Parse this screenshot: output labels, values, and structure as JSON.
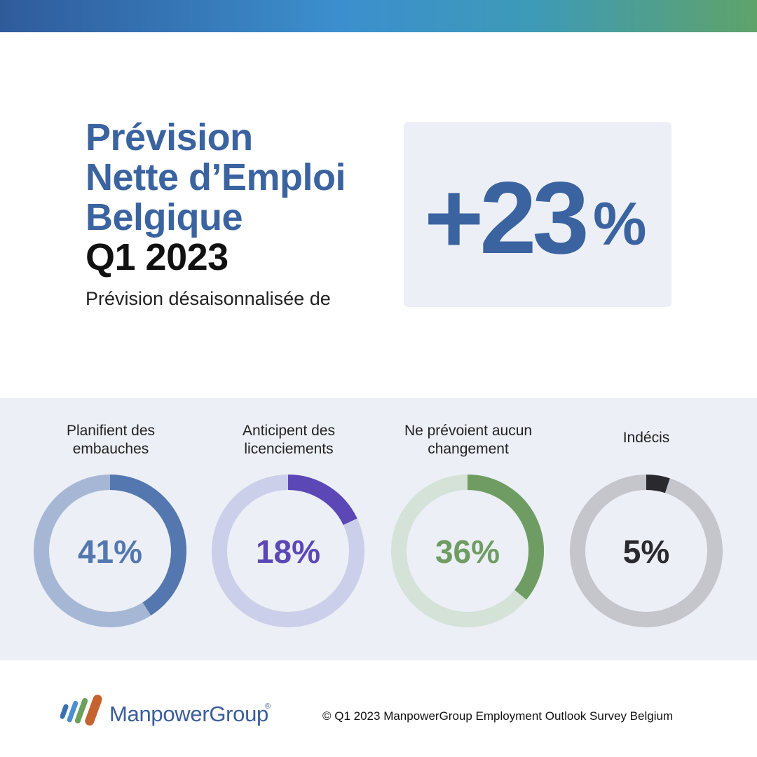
{
  "header": {
    "title_lines": [
      "Prévision",
      "Nette d’Emploi",
      "Belgique"
    ],
    "quarter": "Q1 2023",
    "subtitle": "Prévision désaisonnalisée de"
  },
  "outlook": {
    "value": "+23",
    "unit": "%"
  },
  "chart_data": {
    "type": "pie",
    "style": "donut",
    "items": [
      {
        "label": "Planifient des embauches",
        "value": 41,
        "value_label": "41%",
        "color": "#5477b0",
        "track_color": "#a6b7d6",
        "text_color": "#5477b0"
      },
      {
        "label": "Anticipent des licenciements",
        "value": 18,
        "value_label": "18%",
        "color": "#5b47b6",
        "track_color": "#cccfe9",
        "text_color": "#5b47b6"
      },
      {
        "label": "Ne prévoient aucun changement",
        "value": 36,
        "value_label": "36%",
        "color": "#6f9c63",
        "track_color": "#d4e2d8",
        "text_color": "#6f9c63"
      },
      {
        "label": "Indécis",
        "value": 5,
        "value_label": "5%",
        "color": "#2a2a2e",
        "track_color": "#c4c6cb",
        "text_color": "#2a2a2e"
      }
    ],
    "label_lines": [
      [
        "Planifient des",
        "embauches"
      ],
      [
        "Anticipent des",
        "licenciements"
      ],
      [
        "Ne prévoient aucun",
        "changement"
      ],
      [
        "Indécis"
      ]
    ]
  },
  "footer": {
    "brand": "ManpowerGroup",
    "registered_mark": "®",
    "copyright": "© Q1 2023 ManpowerGroup Employment Outlook Survey Belgium"
  },
  "colors": {
    "accent": "#3a63a0",
    "panel": "#eceff5",
    "gradient": [
      "#2f5b9b",
      "#3c8fce",
      "#5fa36a"
    ]
  }
}
